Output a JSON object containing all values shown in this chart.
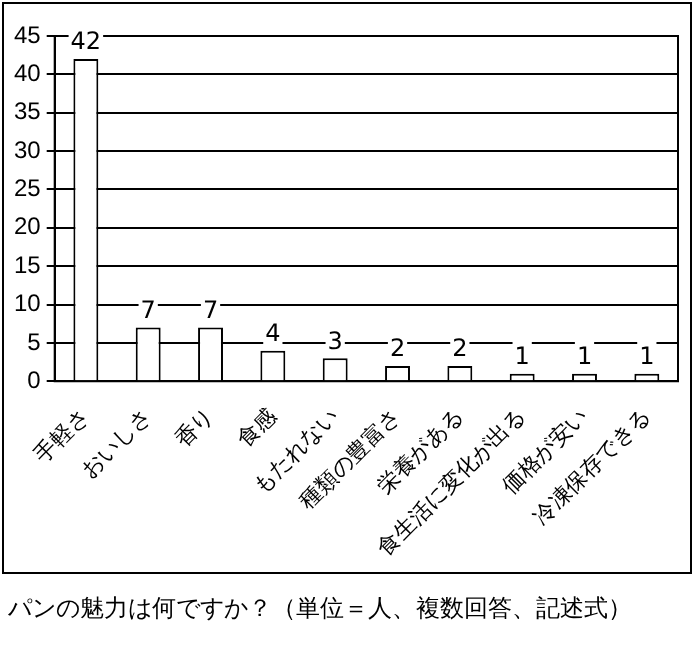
{
  "chart_data": {
    "type": "bar",
    "categories": [
      "手軽さ",
      "おいしさ",
      "香り",
      "食感",
      "もたれない",
      "種類の豊富さ",
      "栄養がある",
      "食生活に変化が出る",
      "価格が安い",
      "冷凍保存できる"
    ],
    "values": [
      42,
      7,
      7,
      4,
      3,
      2,
      2,
      1,
      1,
      1
    ],
    "color": "#ffffff",
    "ylim": [
      0,
      45
    ],
    "yticks": [
      0,
      5,
      10,
      15,
      20,
      25,
      30,
      35,
      40,
      45
    ],
    "grid": "y",
    "data_labels": true,
    "annotations": [
      "パンの魅力は何ですか？（単位＝人、複数回答、記述式）"
    ]
  }
}
